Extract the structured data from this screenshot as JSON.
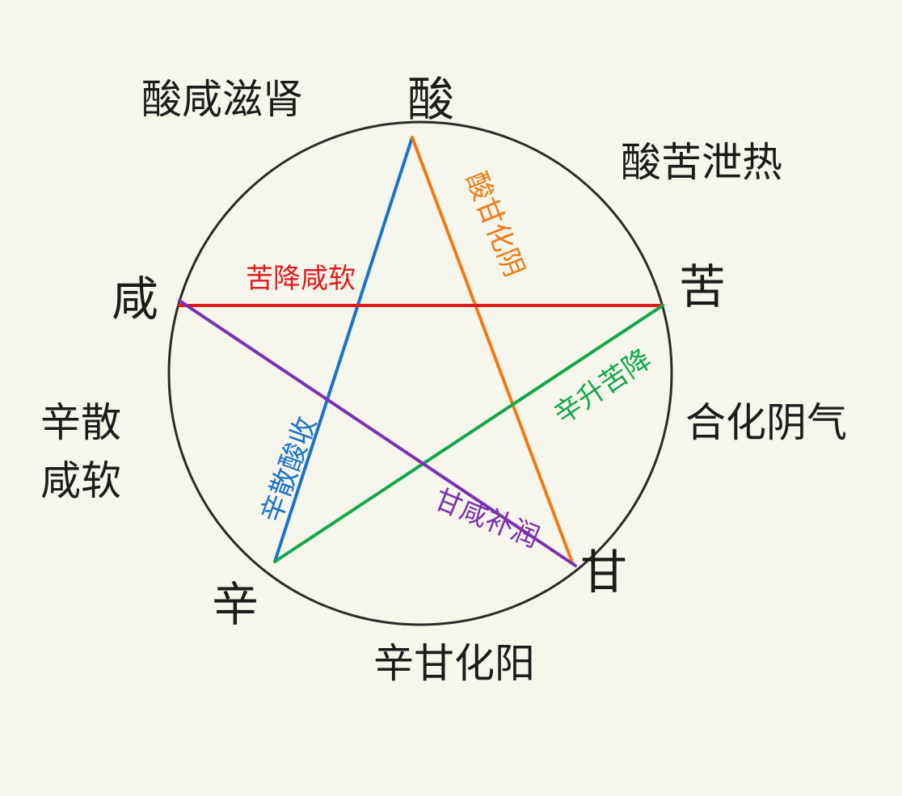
{
  "colors": {
    "background": "#f7f6ec",
    "circle": "#2b2b2b",
    "text": "#1c1c1c"
  },
  "vertices": {
    "top": "酸",
    "right": "苦",
    "bottom_right": "甘",
    "bottom_left": "辛",
    "left": "咸"
  },
  "outer_labels": {
    "top_left": "酸咸滋肾",
    "top_right": "酸苦泄热",
    "right": "合化阴气",
    "left_line1": "辛散",
    "left_line2": "咸软",
    "bottom": "辛甘化阳"
  },
  "edges": [
    {
      "from": "top",
      "to": "bottom_left",
      "label": "辛散酸收",
      "color": "#1a73c9"
    },
    {
      "from": "top",
      "to": "bottom_right",
      "label": "酸甘化阴",
      "color": "#f07a12"
    },
    {
      "from": "left",
      "to": "right",
      "label": "苦降咸软",
      "color": "#e01b1b"
    },
    {
      "from": "right",
      "to": "bottom_left",
      "label": "辛升苦降",
      "color": "#12a84a"
    },
    {
      "from": "left",
      "to": "bottom_right",
      "label": "甘咸补润",
      "color": "#7b32b0"
    }
  ]
}
